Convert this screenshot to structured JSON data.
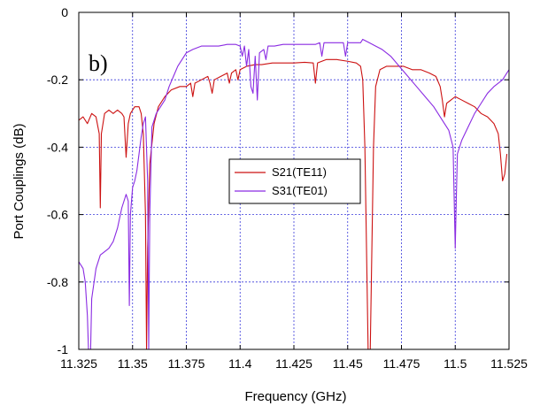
{
  "chart_data": {
    "type": "line",
    "panel_label": "b)",
    "xlabel": "Frequency (GHz)",
    "ylabel": "Port Couplings (dB)",
    "xlim": [
      11.325,
      11.525
    ],
    "ylim": [
      -1,
      0
    ],
    "x_ticks": [
      11.325,
      11.35,
      11.375,
      11.4,
      11.425,
      11.45,
      11.475,
      11.5,
      11.525
    ],
    "x_tick_labels": [
      "11.325",
      "11.35",
      "11.375",
      "11.4",
      "11.425",
      "11.45",
      "11.475",
      "11.5",
      "11.525"
    ],
    "y_ticks": [
      0,
      -0.2,
      -0.4,
      -0.6,
      -0.8,
      -1
    ],
    "y_tick_labels": [
      "0",
      "-0.2",
      "-0.4",
      "-0.6",
      "-0.8",
      "-1"
    ],
    "grid": true,
    "legend_position": "center-right",
    "series": [
      {
        "name": "S21(TE11)",
        "color": "#cc1111",
        "points": [
          [
            11.325,
            -0.32
          ],
          [
            11.327,
            -0.31
          ],
          [
            11.329,
            -0.33
          ],
          [
            11.331,
            -0.3
          ],
          [
            11.333,
            -0.31
          ],
          [
            11.3345,
            -0.36
          ],
          [
            11.335,
            -0.58
          ],
          [
            11.3355,
            -0.36
          ],
          [
            11.337,
            -0.3
          ],
          [
            11.339,
            -0.29
          ],
          [
            11.341,
            -0.3
          ],
          [
            11.343,
            -0.29
          ],
          [
            11.345,
            -0.3
          ],
          [
            11.346,
            -0.31
          ],
          [
            11.347,
            -0.43
          ],
          [
            11.348,
            -0.33
          ],
          [
            11.349,
            -0.3
          ],
          [
            11.351,
            -0.28
          ],
          [
            11.353,
            -0.28
          ],
          [
            11.354,
            -0.3
          ],
          [
            11.355,
            -0.36
          ],
          [
            11.356,
            -0.6
          ],
          [
            11.3565,
            -1.0
          ],
          [
            11.357,
            -0.7
          ],
          [
            11.358,
            -0.45
          ],
          [
            11.36,
            -0.33
          ],
          [
            11.362,
            -0.28
          ],
          [
            11.365,
            -0.25
          ],
          [
            11.368,
            -0.23
          ],
          [
            11.372,
            -0.22
          ],
          [
            11.375,
            -0.22
          ],
          [
            11.377,
            -0.21
          ],
          [
            11.378,
            -0.25
          ],
          [
            11.379,
            -0.21
          ],
          [
            11.382,
            -0.2
          ],
          [
            11.385,
            -0.19
          ],
          [
            11.386,
            -0.21
          ],
          [
            11.387,
            -0.24
          ],
          [
            11.388,
            -0.2
          ],
          [
            11.391,
            -0.19
          ],
          [
            11.394,
            -0.18
          ],
          [
            11.395,
            -0.21
          ],
          [
            11.396,
            -0.18
          ],
          [
            11.398,
            -0.17
          ],
          [
            11.399,
            -0.2
          ],
          [
            11.4,
            -0.17
          ],
          [
            11.403,
            -0.16
          ],
          [
            11.407,
            -0.155
          ],
          [
            11.41,
            -0.155
          ],
          [
            11.415,
            -0.15
          ],
          [
            11.42,
            -0.15
          ],
          [
            11.425,
            -0.15
          ],
          [
            11.43,
            -0.148
          ],
          [
            11.434,
            -0.15
          ],
          [
            11.435,
            -0.21
          ],
          [
            11.436,
            -0.15
          ],
          [
            11.44,
            -0.14
          ],
          [
            11.445,
            -0.14
          ],
          [
            11.45,
            -0.145
          ],
          [
            11.454,
            -0.15
          ],
          [
            11.456,
            -0.16
          ],
          [
            11.457,
            -0.2
          ],
          [
            11.458,
            -0.4
          ],
          [
            11.459,
            -0.8
          ],
          [
            11.4595,
            -1.0
          ],
          [
            11.4605,
            -1.0
          ],
          [
            11.461,
            -0.8
          ],
          [
            11.462,
            -0.4
          ],
          [
            11.463,
            -0.22
          ],
          [
            11.465,
            -0.17
          ],
          [
            11.468,
            -0.16
          ],
          [
            11.472,
            -0.16
          ],
          [
            11.476,
            -0.16
          ],
          [
            11.48,
            -0.17
          ],
          [
            11.484,
            -0.17
          ],
          [
            11.488,
            -0.18
          ],
          [
            11.491,
            -0.19
          ],
          [
            11.493,
            -0.22
          ],
          [
            11.494,
            -0.26
          ],
          [
            11.495,
            -0.31
          ],
          [
            11.496,
            -0.27
          ],
          [
            11.498,
            -0.26
          ],
          [
            11.5,
            -0.25
          ],
          [
            11.503,
            -0.26
          ],
          [
            11.506,
            -0.27
          ],
          [
            11.509,
            -0.28
          ],
          [
            11.512,
            -0.3
          ],
          [
            11.515,
            -0.31
          ],
          [
            11.518,
            -0.33
          ],
          [
            11.52,
            -0.36
          ],
          [
            11.521,
            -0.42
          ],
          [
            11.522,
            -0.5
          ],
          [
            11.523,
            -0.48
          ],
          [
            11.524,
            -0.42
          ]
        ]
      },
      {
        "name": "S31(TE01)",
        "color": "#8a2be2",
        "points": [
          [
            11.325,
            -0.74
          ],
          [
            11.327,
            -0.76
          ],
          [
            11.328,
            -0.8
          ],
          [
            11.329,
            -0.9
          ],
          [
            11.3295,
            -1.0
          ],
          [
            11.3305,
            -1.0
          ],
          [
            11.331,
            -0.85
          ],
          [
            11.333,
            -0.76
          ],
          [
            11.335,
            -0.72
          ],
          [
            11.337,
            -0.71
          ],
          [
            11.339,
            -0.7
          ],
          [
            11.341,
            -0.68
          ],
          [
            11.343,
            -0.64
          ],
          [
            11.345,
            -0.58
          ],
          [
            11.347,
            -0.54
          ],
          [
            11.348,
            -0.56
          ],
          [
            11.3485,
            -0.87
          ],
          [
            11.349,
            -0.6
          ],
          [
            11.35,
            -0.52
          ],
          [
            11.351,
            -0.5
          ],
          [
            11.352,
            -0.47
          ],
          [
            11.353,
            -0.42
          ],
          [
            11.354,
            -0.37
          ],
          [
            11.355,
            -0.33
          ],
          [
            11.356,
            -0.31
          ],
          [
            11.357,
            -0.5
          ],
          [
            11.3575,
            -1.0
          ],
          [
            11.358,
            -0.6
          ],
          [
            11.359,
            -0.34
          ],
          [
            11.361,
            -0.3
          ],
          [
            11.363,
            -0.28
          ],
          [
            11.365,
            -0.26
          ],
          [
            11.367,
            -0.22
          ],
          [
            11.369,
            -0.19
          ],
          [
            11.371,
            -0.16
          ],
          [
            11.373,
            -0.14
          ],
          [
            11.375,
            -0.12
          ],
          [
            11.378,
            -0.11
          ],
          [
            11.382,
            -0.1
          ],
          [
            11.386,
            -0.1
          ],
          [
            11.39,
            -0.1
          ],
          [
            11.394,
            -0.095
          ],
          [
            11.398,
            -0.095
          ],
          [
            11.4,
            -0.1
          ],
          [
            11.401,
            -0.13
          ],
          [
            11.402,
            -0.1
          ],
          [
            11.403,
            -0.16
          ],
          [
            11.404,
            -0.11
          ],
          [
            11.405,
            -0.22
          ],
          [
            11.406,
            -0.24
          ],
          [
            11.407,
            -0.13
          ],
          [
            11.408,
            -0.26
          ],
          [
            11.409,
            -0.12
          ],
          [
            11.411,
            -0.11
          ],
          [
            11.412,
            -0.14
          ],
          [
            11.413,
            -0.1
          ],
          [
            11.416,
            -0.1
          ],
          [
            11.42,
            -0.095
          ],
          [
            11.425,
            -0.095
          ],
          [
            11.43,
            -0.095
          ],
          [
            11.435,
            -0.095
          ],
          [
            11.437,
            -0.09
          ],
          [
            11.438,
            -0.13
          ],
          [
            11.439,
            -0.09
          ],
          [
            11.442,
            -0.09
          ],
          [
            11.445,
            -0.09
          ],
          [
            11.448,
            -0.09
          ],
          [
            11.449,
            -0.13
          ],
          [
            11.45,
            -0.09
          ],
          [
            11.453,
            -0.09
          ],
          [
            11.456,
            -0.09
          ],
          [
            11.457,
            -0.08
          ],
          [
            11.46,
            -0.09
          ],
          [
            11.463,
            -0.1
          ],
          [
            11.466,
            -0.11
          ],
          [
            11.47,
            -0.13
          ],
          [
            11.474,
            -0.16
          ],
          [
            11.478,
            -0.19
          ],
          [
            11.482,
            -0.22
          ],
          [
            11.486,
            -0.25
          ],
          [
            11.49,
            -0.28
          ],
          [
            11.494,
            -0.32
          ],
          [
            11.497,
            -0.35
          ],
          [
            11.499,
            -0.4
          ],
          [
            11.4995,
            -0.55
          ],
          [
            11.5,
            -0.7
          ],
          [
            11.5005,
            -0.55
          ],
          [
            11.501,
            -0.42
          ],
          [
            11.503,
            -0.38
          ],
          [
            11.506,
            -0.34
          ],
          [
            11.509,
            -0.3
          ],
          [
            11.512,
            -0.27
          ],
          [
            11.515,
            -0.24
          ],
          [
            11.518,
            -0.22
          ],
          [
            11.52,
            -0.21
          ],
          [
            11.522,
            -0.2
          ],
          [
            11.524,
            -0.18
          ],
          [
            11.525,
            -0.17
          ]
        ]
      }
    ]
  }
}
